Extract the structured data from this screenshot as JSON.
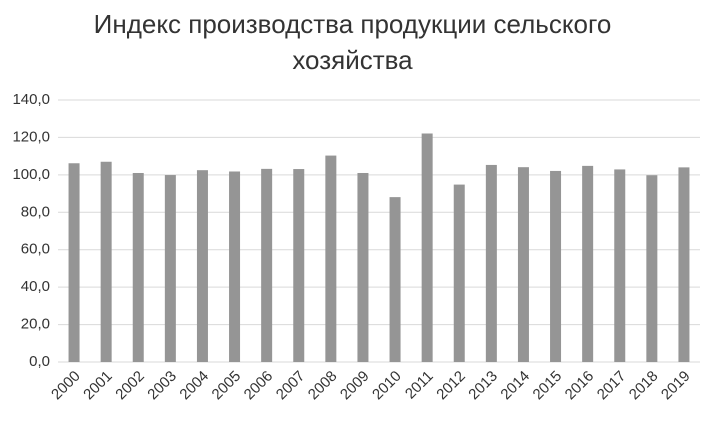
{
  "chart_data": {
    "type": "bar",
    "title": "Индекс производства продукции сельского хозяйства",
    "categories": [
      "2000",
      "2001",
      "2002",
      "2003",
      "2004",
      "2005",
      "2006",
      "2007",
      "2008",
      "2009",
      "2010",
      "2011",
      "2012",
      "2013",
      "2014",
      "2015",
      "2016",
      "2017",
      "2018",
      "2019"
    ],
    "values": [
      106.2,
      107.0,
      101.0,
      99.9,
      102.5,
      101.8,
      103.2,
      103.1,
      110.3,
      101.0,
      88.1,
      122.1,
      94.8,
      105.3,
      104.1,
      102.1,
      104.8,
      102.9,
      99.8,
      104.0
    ],
    "color": "#959595",
    "ylim": [
      0,
      140
    ],
    "yticks": [
      {
        "value": 0,
        "label": "0,0"
      },
      {
        "value": 20,
        "label": "20,0"
      },
      {
        "value": 40,
        "label": "40,0"
      },
      {
        "value": 60,
        "label": "60,0"
      },
      {
        "value": 80,
        "label": "80,0"
      },
      {
        "value": 100,
        "label": "100,0"
      },
      {
        "value": 120,
        "label": "120,0"
      },
      {
        "value": 140,
        "label": "140,0"
      }
    ],
    "grid": true
  }
}
